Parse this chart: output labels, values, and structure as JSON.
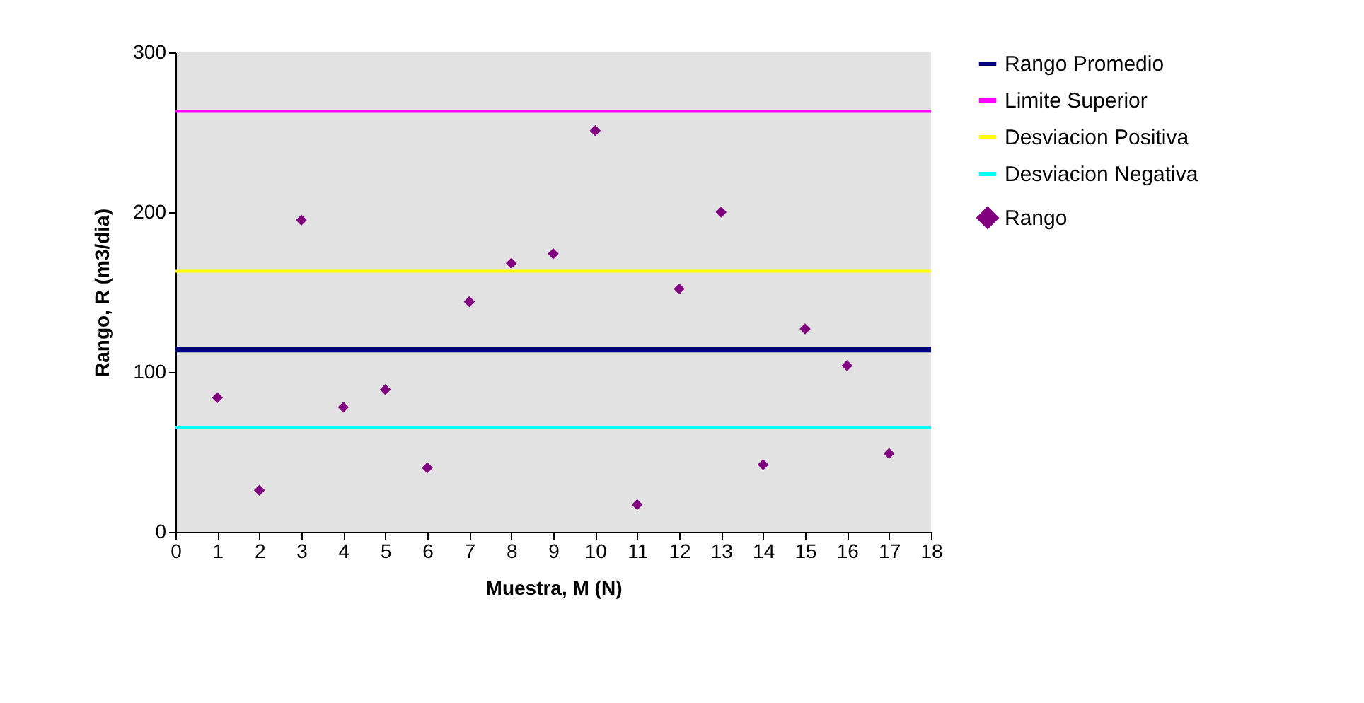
{
  "chart_data": {
    "type": "scatter",
    "xlabel": "Muestra, M (N)",
    "ylabel": "Rango, R (m3/dia)",
    "xlim": [
      0,
      18
    ],
    "xticks": [
      0,
      1,
      2,
      3,
      4,
      5,
      6,
      7,
      8,
      9,
      10,
      11,
      12,
      13,
      14,
      15,
      16,
      17,
      18
    ],
    "ylim": [
      0,
      300
    ],
    "yticks": [
      0,
      100,
      200,
      300
    ],
    "legend": "right",
    "grid": false,
    "series": [
      {
        "name": "Rango Promedio",
        "type": "line",
        "color": "#000080",
        "x": [
          0,
          18
        ],
        "values": [
          114,
          114
        ]
      },
      {
        "name": "Limite Superior",
        "type": "line",
        "color": "#ff00ff",
        "x": [
          0,
          18
        ],
        "values": [
          263,
          263
        ]
      },
      {
        "name": "Desviacion Positiva",
        "type": "line",
        "color": "#ffff00",
        "x": [
          0,
          18
        ],
        "values": [
          163,
          163
        ]
      },
      {
        "name": "Desviacion Negativa",
        "type": "line",
        "color": "#00ffff",
        "x": [
          0,
          18
        ],
        "values": [
          65,
          65
        ]
      },
      {
        "name": "Rango",
        "marker": "diamond",
        "color": "#800080",
        "x": [
          1,
          2,
          3,
          4,
          5,
          6,
          7,
          8,
          9,
          10,
          11,
          12,
          13,
          14,
          15,
          16,
          17
        ],
        "values": [
          84,
          26,
          195,
          78,
          89,
          40,
          144,
          168,
          174,
          251,
          17,
          152,
          200,
          42,
          127,
          104,
          49
        ]
      }
    ]
  }
}
